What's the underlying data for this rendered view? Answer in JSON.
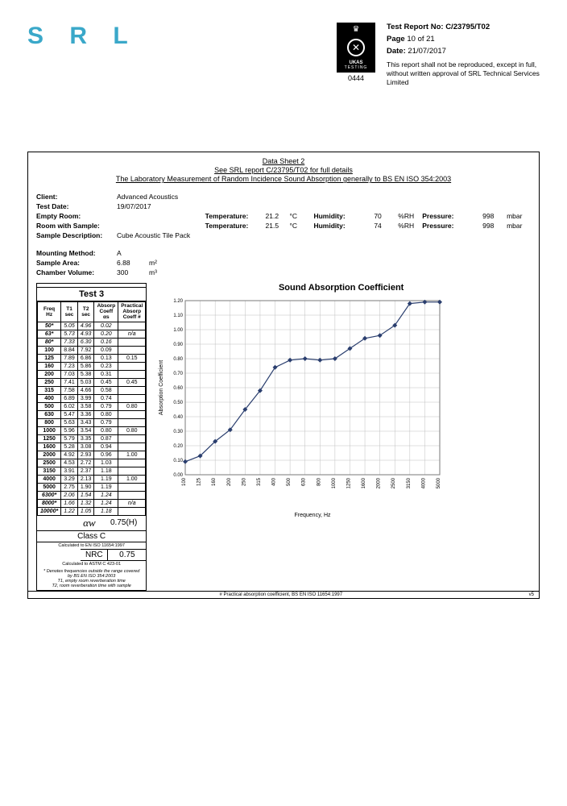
{
  "header": {
    "logo": "S R L",
    "ukas_top": "UKAS",
    "ukas_bottom": "TESTING",
    "ukas_num": "0444",
    "report_label": "Test Report No:",
    "report_no": "C/23795/T02",
    "page_label": "Page",
    "page_val": "10 of 21",
    "date_label": "Date:",
    "date_val": "21/07/2017",
    "disclaimer": "This report shall not be reproduced, except in full, without written approval of SRL Technical Services Limited"
  },
  "sheet": {
    "title": "Data Sheet 2",
    "sub1": "See SRL report C/23795/T02 for full details",
    "sub2": "The Laboratory Measurement of Random Incidence Sound Absorption generally to BS EN ISO 354:2003",
    "client_l": "Client:",
    "client_v": "Advanced Acoustics",
    "date_l": "Test Date:",
    "date_v": "19/07/2017",
    "empty_l": "Empty Room:",
    "temp_l": "Temperature:",
    "empty_temp": "21.2",
    "c": "°C",
    "hum_l": "Humidity:",
    "empty_hum": "70",
    "rh": "%RH",
    "pres_l": "Pressure:",
    "empty_pres": "998",
    "mbar": "mbar",
    "sample_l": "Room with Sample:",
    "samp_temp": "21.5",
    "samp_hum": "74",
    "samp_pres": "998",
    "desc_l": "Sample Description:",
    "desc_v": "Cube Acoustic Tile Pack",
    "mount_l": "Mounting Method:",
    "mount_v": "A",
    "area_l": "Sample Area:",
    "area_v": "6.88",
    "area_u": "m²",
    "vol_l": "Chamber Volume:",
    "vol_v": "300",
    "vol_u": "m³"
  },
  "table": {
    "title": "Test 3",
    "headers": [
      "Freq\nHz",
      "T1\nsec",
      "T2\nsec",
      "Absorp\nCoeff\nαs",
      "Practical\nAbsorp\nCoeff #"
    ],
    "rows": [
      {
        "f": "50*",
        "t1": "5.05",
        "t2": "4.96",
        "a": "0.02",
        "p": "",
        "i": true
      },
      {
        "f": "63*",
        "t1": "5.73",
        "t2": "4.93",
        "a": "0.20",
        "p": "n/a",
        "i": true
      },
      {
        "f": "80*",
        "t1": "7.33",
        "t2": "6.30",
        "a": "0.16",
        "p": "",
        "i": true
      },
      {
        "f": "100",
        "t1": "8.84",
        "t2": "7.92",
        "a": "0.09",
        "p": ""
      },
      {
        "f": "125",
        "t1": "7.89",
        "t2": "6.86",
        "a": "0.13",
        "p": "0.15"
      },
      {
        "f": "160",
        "t1": "7.23",
        "t2": "5.86",
        "a": "0.23",
        "p": ""
      },
      {
        "f": "200",
        "t1": "7.03",
        "t2": "5.38",
        "a": "0.31",
        "p": ""
      },
      {
        "f": "250",
        "t1": "7.41",
        "t2": "5.03",
        "a": "0.45",
        "p": "0.45"
      },
      {
        "f": "315",
        "t1": "7.58",
        "t2": "4.66",
        "a": "0.58",
        "p": ""
      },
      {
        "f": "400",
        "t1": "6.89",
        "t2": "3.99",
        "a": "0.74",
        "p": ""
      },
      {
        "f": "500",
        "t1": "6.02",
        "t2": "3.58",
        "a": "0.79",
        "p": "0.80"
      },
      {
        "f": "630",
        "t1": "5.47",
        "t2": "3.36",
        "a": "0.80",
        "p": ""
      },
      {
        "f": "800",
        "t1": "5.63",
        "t2": "3.43",
        "a": "0.79",
        "p": ""
      },
      {
        "f": "1000",
        "t1": "5.96",
        "t2": "3.54",
        "a": "0.80",
        "p": "0.80"
      },
      {
        "f": "1250",
        "t1": "5.79",
        "t2": "3.35",
        "a": "0.87",
        "p": ""
      },
      {
        "f": "1600",
        "t1": "5.28",
        "t2": "3.08",
        "a": "0.94",
        "p": ""
      },
      {
        "f": "2000",
        "t1": "4.92",
        "t2": "2.93",
        "a": "0.96",
        "p": "1.00"
      },
      {
        "f": "2500",
        "t1": "4.53",
        "t2": "2.72",
        "a": "1.03",
        "p": ""
      },
      {
        "f": "3150",
        "t1": "3.91",
        "t2": "2.37",
        "a": "1.18",
        "p": ""
      },
      {
        "f": "4000",
        "t1": "3.29",
        "t2": "2.13",
        "a": "1.19",
        "p": "1.00"
      },
      {
        "f": "5000",
        "t1": "2.75",
        "t2": "1.90",
        "a": "1.19",
        "p": ""
      },
      {
        "f": "6300*",
        "t1": "2.06",
        "t2": "1.54",
        "a": "1.24",
        "p": "",
        "i": true
      },
      {
        "f": "8000*",
        "t1": "1.66",
        "t2": "1.32",
        "a": "1.24",
        "p": "n/a",
        "i": true
      },
      {
        "f": "10000*",
        "t1": "1.22",
        "t2": "1.05",
        "a": "1.18",
        "p": "",
        "i": true
      }
    ],
    "aw_sym": "αw",
    "aw_val": "0.75(H)",
    "class_l": "Class C",
    "class_note": "Calculated to EN ISO 11654:1997",
    "nrc_l": "NRC",
    "nrc_v": "0.75",
    "nrc_note": "Calculated to ASTM C 423-01",
    "fn1": "* Denotes frequencies outside the range covered",
    "fn2": "by BS EN ISO 354:2003",
    "fn3": "T1, empty room reverberation time",
    "fn4": "T2, room reverberation time with sample"
  },
  "chart": {
    "title": "Sound Absorption Coefficient",
    "xlabel": "Frequency, Hz",
    "ylabel": "Absorption Coefficient",
    "yticks": [
      "0.00",
      "0.10",
      "0.20",
      "0.30",
      "0.40",
      "0.50",
      "0.60",
      "0.70",
      "0.80",
      "0.90",
      "1.00",
      "1.10",
      "1.20"
    ],
    "xticks": [
      "100",
      "125",
      "160",
      "200",
      "250",
      "315",
      "400",
      "500",
      "630",
      "800",
      "1000",
      "1250",
      "1600",
      "2000",
      "2500",
      "3150",
      "4000",
      "5000"
    ],
    "points": [
      0.09,
      0.13,
      0.23,
      0.31,
      0.45,
      0.58,
      0.74,
      0.79,
      0.8,
      0.79,
      0.8,
      0.87,
      0.94,
      0.96,
      1.03,
      1.18,
      1.19,
      1.19
    ],
    "line_color": "#2a3e6e",
    "marker_color": "#2a3e6e",
    "grid_color": "#bfbfbf",
    "bg": "#ffffff"
  },
  "footer": {
    "note": "# Practical absorption coefficient, BS EN ISO 11654:1997",
    "ver": "v5"
  }
}
